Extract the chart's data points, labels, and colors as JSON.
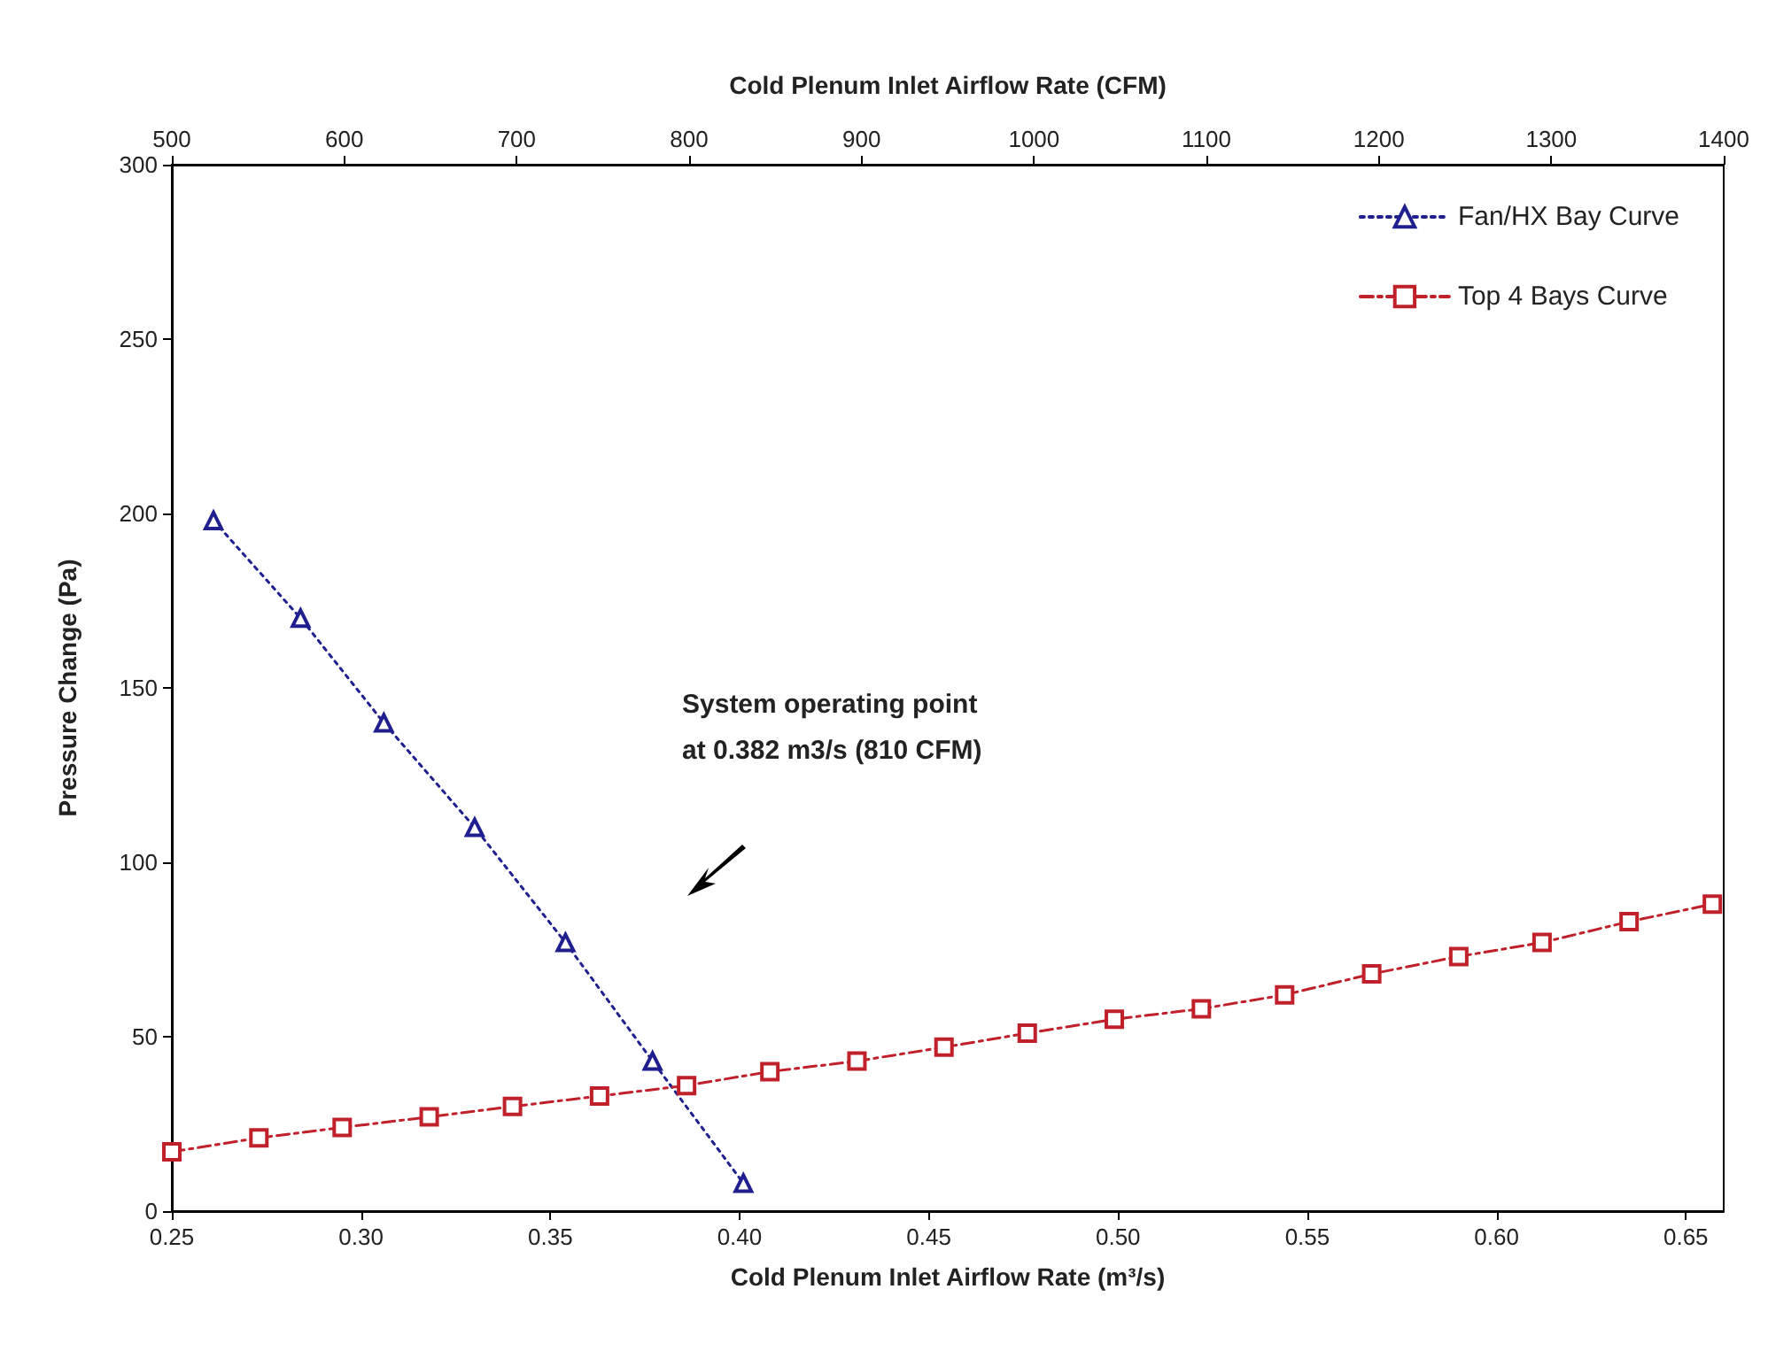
{
  "chart_data": {
    "type": "line",
    "xlabel": "Cold Plenum Inlet Airflow Rate (m³/s)",
    "x2label": "Cold Plenum Inlet Airflow Rate (CFM)",
    "ylabel": "Pressure Change (Pa)",
    "xlim": [
      0.25,
      0.66
    ],
    "xticks": [
      0.25,
      {
        "value": 0.3,
        "label": "0.30"
      },
      0.35,
      {
        "value": 0.4,
        "label": "0.40"
      },
      0.45,
      {
        "value": 0.5,
        "label": "0.50"
      },
      0.55,
      {
        "value": 0.6,
        "label": "0.60"
      },
      0.65
    ],
    "x2lim": [
      500,
      1400
    ],
    "x2ticks": [
      500,
      600,
      700,
      800,
      900,
      1000,
      1100,
      1200,
      1300,
      1400
    ],
    "ylim": [
      0,
      300
    ],
    "yticks": [
      0,
      50,
      100,
      150,
      200,
      250,
      300
    ],
    "grid": false,
    "legend": "top right",
    "series": [
      {
        "name": "Fan/HX Bay Curve",
        "color": "#1f1f8f",
        "marker": "triangle",
        "line_style": "dotted",
        "x": [
          0.261,
          0.284,
          0.306,
          0.33,
          0.354,
          0.377,
          0.401
        ],
        "values": [
          198,
          170,
          140,
          110,
          77,
          43,
          8
        ]
      },
      {
        "name": "Top 4 Bays Curve",
        "color": "#c0202a",
        "marker": "square",
        "line_style": "dashed",
        "x": [
          0.25,
          0.273,
          0.295,
          0.318,
          0.34,
          0.363,
          0.386,
          0.408,
          0.431,
          0.454,
          0.476,
          0.499,
          0.522,
          0.544,
          0.567,
          0.59,
          0.612,
          0.635,
          0.657
        ],
        "values": [
          17,
          21,
          24,
          27,
          30,
          33,
          36,
          40,
          43,
          47,
          51,
          55,
          58,
          62,
          68,
          73,
          77,
          83,
          88
        ]
      }
    ],
    "annotations": [
      "System operating point\nat 0.382 m3/s (810 CFM)"
    ]
  }
}
